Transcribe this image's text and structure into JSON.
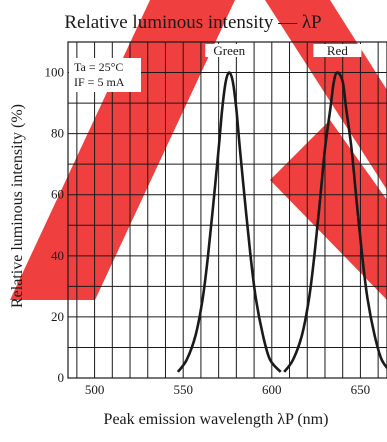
{
  "chart_data": {
    "type": "line",
    "title": "Relative luminous intensity — λP",
    "xlabel": "Peak emission wavelength λP (nm)",
    "ylabel": "Relative luminous intensity (%)",
    "xlim": [
      485,
      665
    ],
    "ylim": [
      0,
      110
    ],
    "x_ticks": [
      500,
      550,
      600,
      650
    ],
    "y_ticks": [
      0,
      20,
      40,
      60,
      80,
      100
    ],
    "x_tick_labels": [
      "500",
      "550",
      "600",
      "650"
    ],
    "y_tick_labels": [
      "0",
      "20",
      "40",
      "60",
      "80",
      "100"
    ],
    "grid": true,
    "conditions": [
      "Ta = 25°C",
      "IF = 5 mA"
    ],
    "series": [
      {
        "name": "Green",
        "color": "#1a1a1a",
        "points": [
          [
            547,
            2
          ],
          [
            552,
            6
          ],
          [
            557,
            14
          ],
          [
            561,
            26
          ],
          [
            564,
            40
          ],
          [
            567,
            57
          ],
          [
            570,
            75
          ],
          [
            572,
            88
          ],
          [
            574,
            97
          ],
          [
            576,
            100
          ],
          [
            578,
            97
          ],
          [
            580,
            88
          ],
          [
            582,
            75
          ],
          [
            585,
            57
          ],
          [
            588,
            40
          ],
          [
            591,
            26
          ],
          [
            595,
            14
          ],
          [
            599,
            6
          ],
          [
            605,
            2
          ]
        ]
      },
      {
        "name": "Red",
        "color": "#1a1a1a",
        "points": [
          [
            607,
            2
          ],
          [
            612,
            6
          ],
          [
            617,
            14
          ],
          [
            621,
            26
          ],
          [
            624,
            40
          ],
          [
            627,
            57
          ],
          [
            630,
            75
          ],
          [
            633,
            88
          ],
          [
            635,
            97
          ],
          [
            637,
            100
          ],
          [
            640,
            97
          ],
          [
            642,
            88
          ],
          [
            645,
            75
          ],
          [
            648,
            57
          ],
          [
            651,
            40
          ],
          [
            654,
            26
          ],
          [
            658,
            14
          ],
          [
            662,
            6
          ],
          [
            667,
            2
          ]
        ]
      }
    ]
  },
  "watermark_color": "#ee2a2a"
}
